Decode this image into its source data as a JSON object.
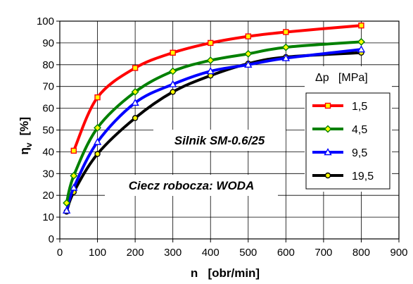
{
  "chart_data": {
    "type": "line",
    "title": "",
    "xlabel": "n   [obr/min]",
    "ylabel_main": "η",
    "ylabel_sub": "v",
    "ylabel_unit": "[%]",
    "xlim": [
      0,
      900
    ],
    "ylim": [
      0,
      100
    ],
    "xticks": [
      "0",
      "100",
      "200",
      "300",
      "400",
      "500",
      "600",
      "700",
      "800",
      "900"
    ],
    "yticks": [
      "0",
      "10",
      "20",
      "30",
      "40",
      "50",
      "60",
      "70",
      "80",
      "90",
      "100"
    ],
    "grid": true,
    "legend_position": "right",
    "legend_title": "Δp   [MPa]",
    "annotations": [
      "Silnik SM-0.6/25",
      "Ciecz robocza: WODA"
    ],
    "series": [
      {
        "name": "1,5",
        "color": "#ff0000",
        "marker": "square",
        "x": [
          37,
          100,
          200,
          300,
          400,
          500,
          600,
          800
        ],
        "y": [
          40.5,
          65,
          78.5,
          85.5,
          90,
          93,
          95,
          98
        ]
      },
      {
        "name": "4,5",
        "color": "#008000",
        "marker": "diamond",
        "x": [
          18,
          37,
          100,
          200,
          300,
          400,
          500,
          600,
          800
        ],
        "y": [
          16.5,
          29,
          51,
          67.5,
          77,
          82,
          85,
          88,
          90.5
        ]
      },
      {
        "name": "9,5",
        "color": "#0000ff",
        "marker": "triangle",
        "x": [
          18,
          37,
          100,
          200,
          300,
          400,
          500,
          600,
          800
        ],
        "y": [
          13,
          23.5,
          44.5,
          62.5,
          71,
          77,
          80,
          83,
          87
        ]
      },
      {
        "name": "19,5",
        "color": "#000000",
        "marker": "circle",
        "x": [
          18,
          37,
          100,
          200,
          300,
          400,
          500,
          600,
          800
        ],
        "y": [
          12.5,
          21.5,
          39,
          55.5,
          67.5,
          75,
          80.5,
          83.5,
          85.5
        ]
      }
    ]
  }
}
